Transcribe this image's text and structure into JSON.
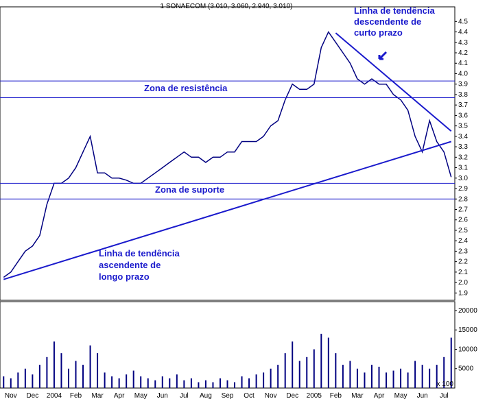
{
  "chart_data": [
    {
      "type": "line",
      "title": "1 SONAECOM (3.010, 3.060, 2.940, 3.010)",
      "color": "#000080",
      "categories": [
        null,
        "Nov",
        null,
        null,
        "Dec",
        null,
        null,
        "2004",
        null,
        null,
        "Feb",
        null,
        null,
        "Mar",
        null,
        null,
        "Apr",
        null,
        null,
        "May",
        null,
        null,
        "Jun",
        null,
        null,
        "Jul",
        null,
        null,
        "Aug",
        null,
        null,
        "Sep",
        null,
        null,
        "Oct",
        null,
        null,
        "Nov",
        null,
        null,
        "Dec",
        null,
        null,
        "2005",
        null,
        null,
        "Feb",
        null,
        null,
        "Mar",
        null,
        null,
        "Apr",
        null,
        null,
        "May",
        null,
        null,
        "Jun",
        null,
        null,
        "Jul",
        null
      ],
      "values": [
        2.05,
        2.1,
        2.2,
        2.3,
        2.35,
        2.45,
        2.75,
        2.95,
        2.95,
        3.0,
        3.1,
        3.25,
        3.4,
        3.05,
        3.05,
        3.0,
        3.0,
        2.98,
        2.95,
        2.95,
        3.0,
        3.05,
        3.1,
        3.15,
        3.2,
        3.25,
        3.2,
        3.2,
        3.15,
        3.2,
        3.2,
        3.25,
        3.25,
        3.35,
        3.35,
        3.35,
        3.4,
        3.5,
        3.55,
        3.75,
        3.9,
        3.85,
        3.85,
        3.9,
        4.25,
        4.4,
        4.3,
        4.2,
        4.1,
        3.95,
        3.9,
        3.95,
        3.9,
        3.9,
        3.8,
        3.75,
        3.65,
        3.4,
        3.25,
        3.55,
        3.35,
        3.25,
        3.01
      ],
      "ylim": [
        1.83,
        4.64
      ],
      "yticks": [
        1.9,
        {
          "value": 2.0,
          "label": "2.0"
        },
        2.1,
        2.2,
        2.3,
        2.4,
        2.5,
        2.6,
        2.7,
        2.8,
        2.9,
        {
          "value": 3.0,
          "label": "3.0"
        },
        3.1,
        3.2,
        3.3,
        3.4,
        3.5,
        3.6,
        3.7,
        3.8,
        3.9,
        {
          "value": 4.0,
          "label": "4.0"
        },
        4.1,
        4.2,
        4.3,
        4.4,
        4.5
      ],
      "resistance_levels": [
        3.93,
        3.77
      ],
      "support_levels": [
        2.95,
        2.8
      ],
      "trendlines": [
        {
          "start": [
            0,
            2.03
          ],
          "end": [
            62,
            3.35
          ]
        },
        {
          "start": [
            46,
            4.39
          ],
          "end": [
            62,
            3.45
          ]
        }
      ],
      "annotations": {
        "resistance": "Zona de resistência",
        "support": "Zona de suporte",
        "long_trend": [
          "Linha de tendência",
          "ascendente de",
          "longo prazo"
        ],
        "short_trend": [
          "Linha de tendência",
          "descendente de",
          "curto prazo"
        ]
      }
    },
    {
      "type": "bar",
      "color": "#000080",
      "unit_label": "x 100",
      "values": [
        3000,
        2500,
        4000,
        5000,
        3500,
        6000,
        8000,
        12000,
        9000,
        5000,
        7000,
        6000,
        11000,
        9000,
        4000,
        3000,
        2500,
        3500,
        4500,
        3000,
        2500,
        2000,
        3000,
        2500,
        3500,
        2000,
        2500,
        1500,
        2000,
        1500,
        2500,
        2000,
        1500,
        3000,
        2500,
        3500,
        4000,
        5000,
        6000,
        9000,
        12000,
        7000,
        8000,
        10000,
        14000,
        13000,
        9000,
        6000,
        7000,
        5000,
        4000,
        6000,
        5500,
        4000,
        4500,
        5000,
        4000,
        7000,
        6000,
        5000,
        6000,
        8000,
        13000
      ],
      "ylim": [
        0,
        22300
      ],
      "yticks": [
        5000,
        10000,
        15000,
        20000
      ]
    }
  ]
}
